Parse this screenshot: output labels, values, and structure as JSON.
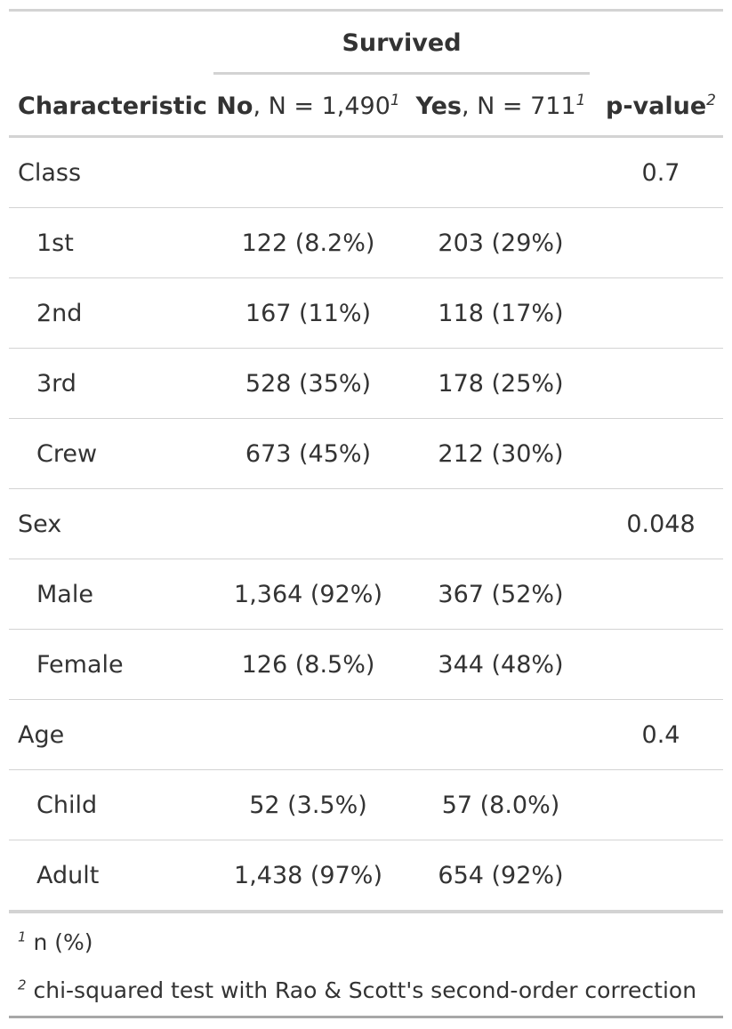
{
  "spanner": "Survived",
  "header": {
    "characteristic": "Characteristic",
    "no_bold": "No",
    "no_rest": ", N = 1,490",
    "no_sup": "1",
    "yes_bold": "Yes",
    "yes_rest": ", N = 711",
    "yes_sup": "1",
    "p_bold": "p-value",
    "p_sup": "2"
  },
  "rows": [
    {
      "label": "Class",
      "no": "",
      "yes": "",
      "p": "0.7",
      "indent": false
    },
    {
      "label": "1st",
      "no": "122 (8.2%)",
      "yes": "203 (29%)",
      "p": "",
      "indent": true
    },
    {
      "label": "2nd",
      "no": "167 (11%)",
      "yes": "118 (17%)",
      "p": "",
      "indent": true
    },
    {
      "label": "3rd",
      "no": "528 (35%)",
      "yes": "178 (25%)",
      "p": "",
      "indent": true
    },
    {
      "label": "Crew",
      "no": "673 (45%)",
      "yes": "212 (30%)",
      "p": "",
      "indent": true
    },
    {
      "label": "Sex",
      "no": "",
      "yes": "",
      "p": "0.048",
      "indent": false
    },
    {
      "label": "Male",
      "no": "1,364 (92%)",
      "yes": "367 (52%)",
      "p": "",
      "indent": true
    },
    {
      "label": "Female",
      "no": "126 (8.5%)",
      "yes": "344 (48%)",
      "p": "",
      "indent": true
    },
    {
      "label": "Age",
      "no": "",
      "yes": "",
      "p": "0.4",
      "indent": false
    },
    {
      "label": "Child",
      "no": "52 (3.5%)",
      "yes": "57 (8.0%)",
      "p": "",
      "indent": true
    },
    {
      "label": "Adult",
      "no": "1,438 (97%)",
      "yes": "654 (92%)",
      "p": "",
      "indent": true
    }
  ],
  "footnotes": [
    {
      "mark": "1",
      "text": "n (%)"
    },
    {
      "mark": "2",
      "text": "chi-squared test with Rao & Scott's second-order correction"
    }
  ]
}
